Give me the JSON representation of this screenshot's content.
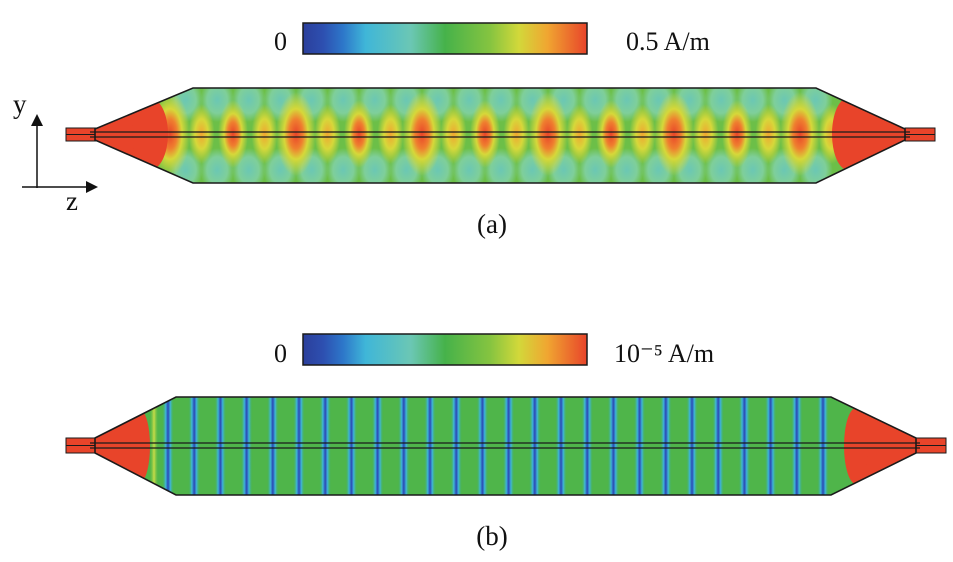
{
  "colormap": [
    "#2c3f9b",
    "#2d76c9",
    "#3fb6d8",
    "#6bc7b4",
    "#46b24a",
    "#86c440",
    "#d2d83a",
    "#f0a631",
    "#e8442a"
  ],
  "panels": [
    {
      "id": "a",
      "caption": "(a)",
      "scale_min_label": "0",
      "scale_max_label": "0.5 A/m",
      "pattern": "standing-wave",
      "field_color_dominant": "green",
      "field_color_peaks": "red"
    },
    {
      "id": "b",
      "caption": "(b)",
      "scale_min_label": "0",
      "scale_max_label": "10⁻⁵ A/m",
      "pattern": "stripes",
      "field_color_dominant": "green",
      "field_color_stripes": "blue"
    }
  ],
  "axes": {
    "y_label": "y",
    "z_label": "z"
  }
}
